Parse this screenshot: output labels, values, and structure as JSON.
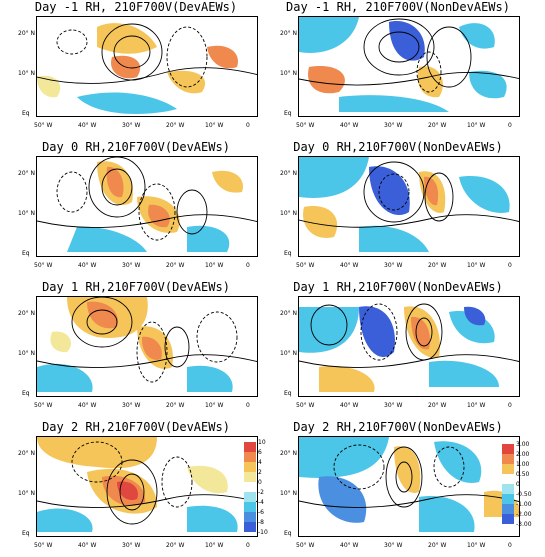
{
  "colors": {
    "level_pos_high": "#e0483f",
    "level_pos_mid": "#f0894d",
    "level_pos_low": "#f6c55a",
    "level_pos_faint": "#f3e79a",
    "level_neg_faint": "#9ee3ee",
    "level_neg_low": "#4cc6e8",
    "level_neg_mid": "#4a8fe0",
    "level_neg_high": "#3a5fd8",
    "contour": "#000000"
  },
  "axis": {
    "y_labels": [
      "20° N",
      "10° N",
      "Eq"
    ],
    "x_labels": [
      "50° W",
      "40° W",
      "30° W",
      "20° W",
      "10° W",
      "0"
    ]
  },
  "panels": [
    {
      "title": "Day -1 RH, 210F700V(DevAEWs)"
    },
    {
      "title": "Day -1 RH, 210F700V(NonDevAEWs)"
    },
    {
      "title": "Day 0 RH,210F700V(DevAEWs)"
    },
    {
      "title": "Day 0 RH,210F700V(NonDevAEWs)"
    },
    {
      "title": "Day 1 RH,210F700V(DevAEWs)"
    },
    {
      "title": "Day 1 RH,210F700V(NonDevAEWs)"
    },
    {
      "title": "Day 2 RH,210F700V(DevAEWs)"
    },
    {
      "title": "Day 2 RH,210F700V(NonDevAEWs)"
    }
  ],
  "colorbar_dev": {
    "labels": [
      "10",
      "6",
      "4",
      "2",
      "0",
      "-2",
      "-4",
      "-6",
      "-8",
      "-10"
    ]
  },
  "colorbar_nondev": {
    "labels": [
      "3.00",
      "2.00",
      "1.00",
      "0.50",
      "0",
      "-0.50",
      "-1.00",
      "-2.00",
      "-3.00"
    ]
  }
}
